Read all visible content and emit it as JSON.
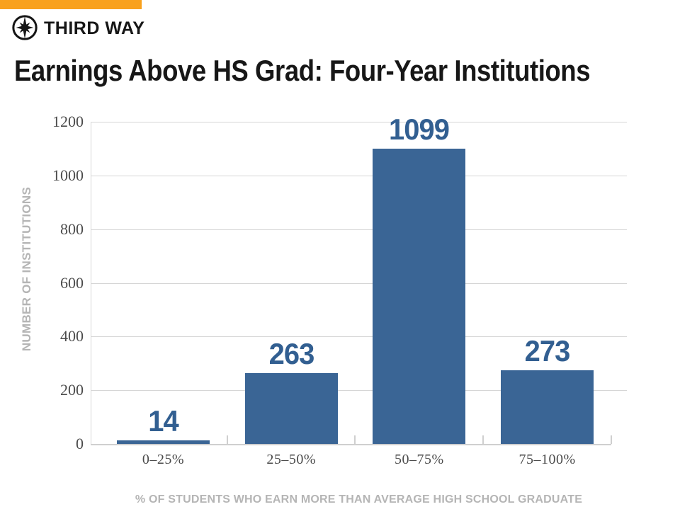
{
  "brand": {
    "name": "THIRD WAY",
    "logo_icon": "compass-star-icon",
    "accent_color": "#F9A11D"
  },
  "title": "Earnings Above HS Grad: Four-Year Institutions",
  "chart_data": {
    "type": "bar",
    "categories": [
      "0–25%",
      "25–50%",
      "50–75%",
      "75–100%"
    ],
    "values": [
      14,
      263,
      1099,
      273
    ],
    "value_labels": [
      "14",
      "263",
      "1099",
      "273"
    ],
    "title": "Earnings Above HS Grad: Four-Year Institutions",
    "xlabel": "% OF STUDENTS WHO EARN MORE THAN AVERAGE HIGH SCHOOL GRADUATE",
    "ylabel": "NUMBER OF INSTITUTIONS",
    "ylim": [
      0,
      1200
    ],
    "yticks": [
      0,
      200,
      400,
      600,
      800,
      1000,
      1200
    ],
    "grid": true,
    "legend": false,
    "bar_color": "#3A6595",
    "value_label_color": "#325F91"
  },
  "colors": {
    "grid": "#D6D6D6",
    "axis": "#CFCFCF",
    "tick_text": "#4B4B4B",
    "muted_label": "#B5B5B5",
    "title_text": "#171717"
  }
}
